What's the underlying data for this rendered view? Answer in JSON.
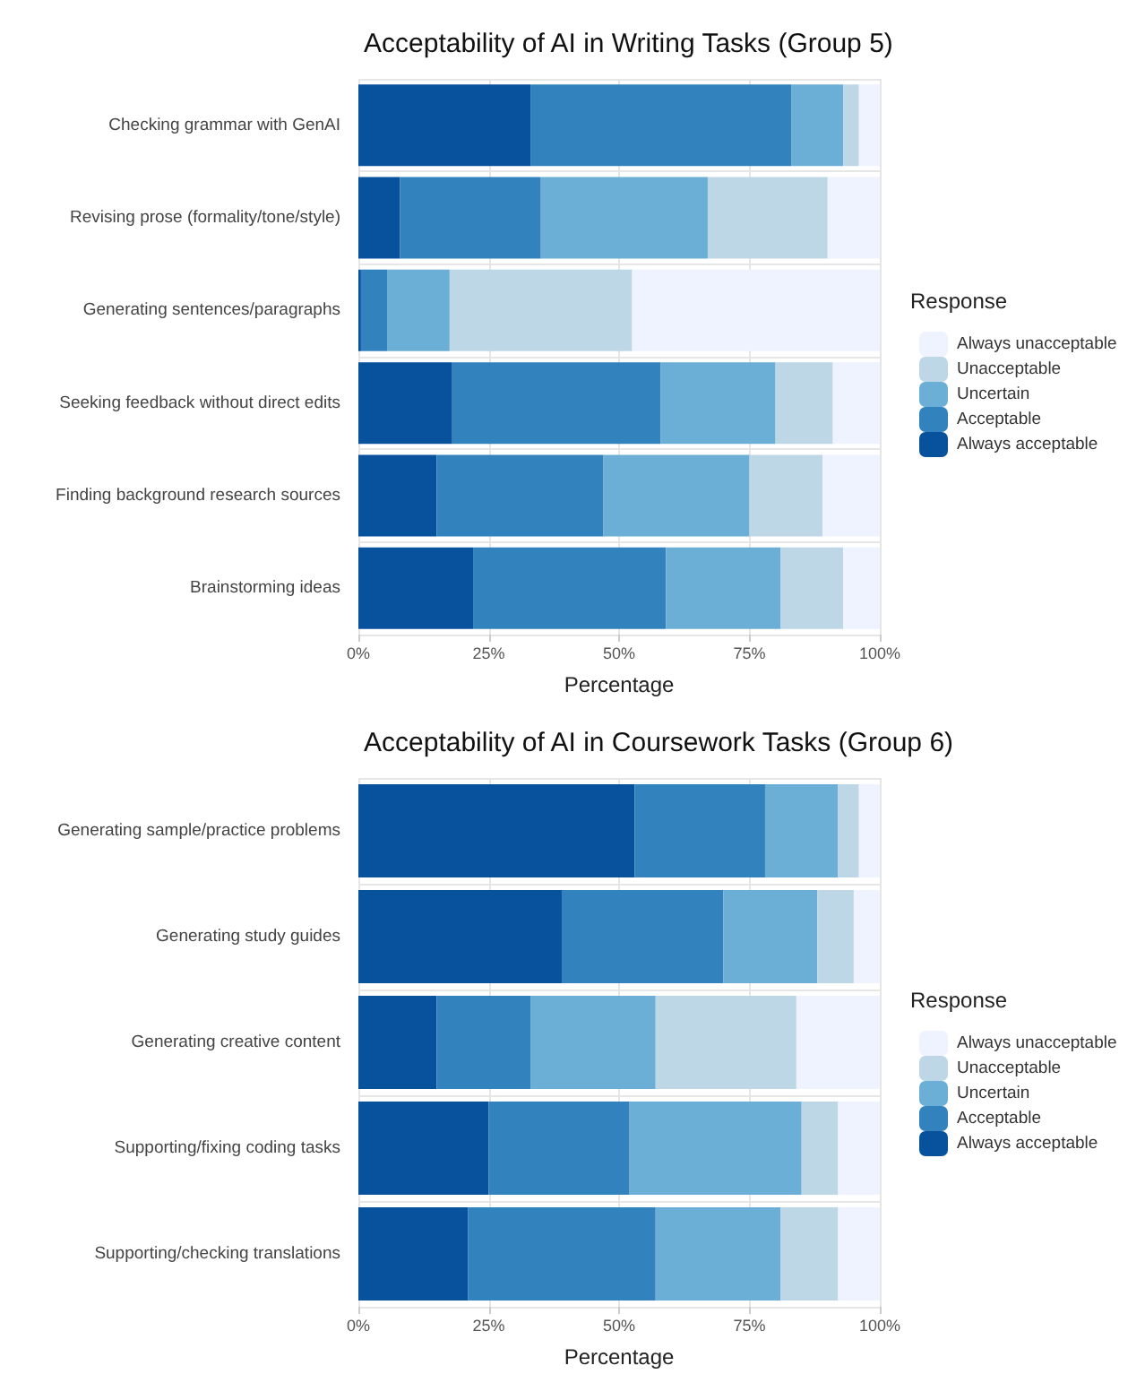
{
  "chart_data": [
    {
      "type": "bar",
      "orientation": "horizontal",
      "stacked": true,
      "title": "Acceptability of AI in Writing Tasks (Group 5)",
      "xlabel": "Percentage",
      "legend_title": "Response",
      "legend": "right",
      "grid": true,
      "categories": [
        "Checking grammar with GenAI",
        "Revising prose (formality/tone/style)",
        "Generating sentences/paragraphs",
        "Seeking feedback without direct edits",
        "Finding background research sources",
        "Brainstorming ideas"
      ],
      "xlim": [
        0,
        100
      ],
      "xticks": [
        {
          "value": 0,
          "label": "0%"
        },
        {
          "value": 25,
          "label": "25%"
        },
        {
          "value": 50,
          "label": "50%"
        },
        {
          "value": 75,
          "label": "75%"
        },
        {
          "value": 100,
          "label": "100%"
        }
      ],
      "series": [
        {
          "name": "Always acceptable",
          "color": "#08519c",
          "values": [
            33,
            8,
            0.5,
            18,
            15,
            22
          ]
        },
        {
          "name": "Acceptable",
          "color": "#3182bd",
          "values": [
            50,
            27,
            5,
            40,
            32,
            37
          ]
        },
        {
          "name": "Uncertain",
          "color": "#6baed6",
          "values": [
            10,
            32,
            12,
            22,
            28,
            22
          ]
        },
        {
          "name": "Unacceptable",
          "color": "#bdd7e7",
          "values": [
            3,
            23,
            35,
            11,
            14,
            12
          ]
        },
        {
          "name": "Always unacceptable",
          "color": "#eff3ff",
          "values": [
            4,
            10,
            47.5,
            9,
            11,
            7
          ]
        }
      ]
    },
    {
      "type": "bar",
      "orientation": "horizontal",
      "stacked": true,
      "title": "Acceptability of AI in Coursework Tasks (Group 6)",
      "xlabel": "Percentage",
      "legend_title": "Response",
      "legend": "right",
      "grid": true,
      "categories": [
        "Generating sample/practice problems",
        "Generating study guides",
        "Generating creative content",
        "Supporting/fixing coding tasks",
        "Supporting/checking translations"
      ],
      "xlim": [
        0,
        100
      ],
      "xticks": [
        {
          "value": 0,
          "label": "0%"
        },
        {
          "value": 25,
          "label": "25%"
        },
        {
          "value": 50,
          "label": "50%"
        },
        {
          "value": 75,
          "label": "75%"
        },
        {
          "value": 100,
          "label": "100%"
        }
      ],
      "series": [
        {
          "name": "Always acceptable",
          "color": "#08519c",
          "values": [
            53,
            39,
            15,
            25,
            21
          ]
        },
        {
          "name": "Acceptable",
          "color": "#3182bd",
          "values": [
            25,
            31,
            18,
            27,
            36
          ]
        },
        {
          "name": "Uncertain",
          "color": "#6baed6",
          "values": [
            14,
            18,
            24,
            33,
            24
          ]
        },
        {
          "name": "Unacceptable",
          "color": "#bdd7e7",
          "values": [
            4,
            7,
            27,
            7,
            11
          ]
        },
        {
          "name": "Always unacceptable",
          "color": "#eff3ff",
          "values": [
            4,
            5,
            16,
            8,
            8
          ]
        }
      ]
    }
  ]
}
